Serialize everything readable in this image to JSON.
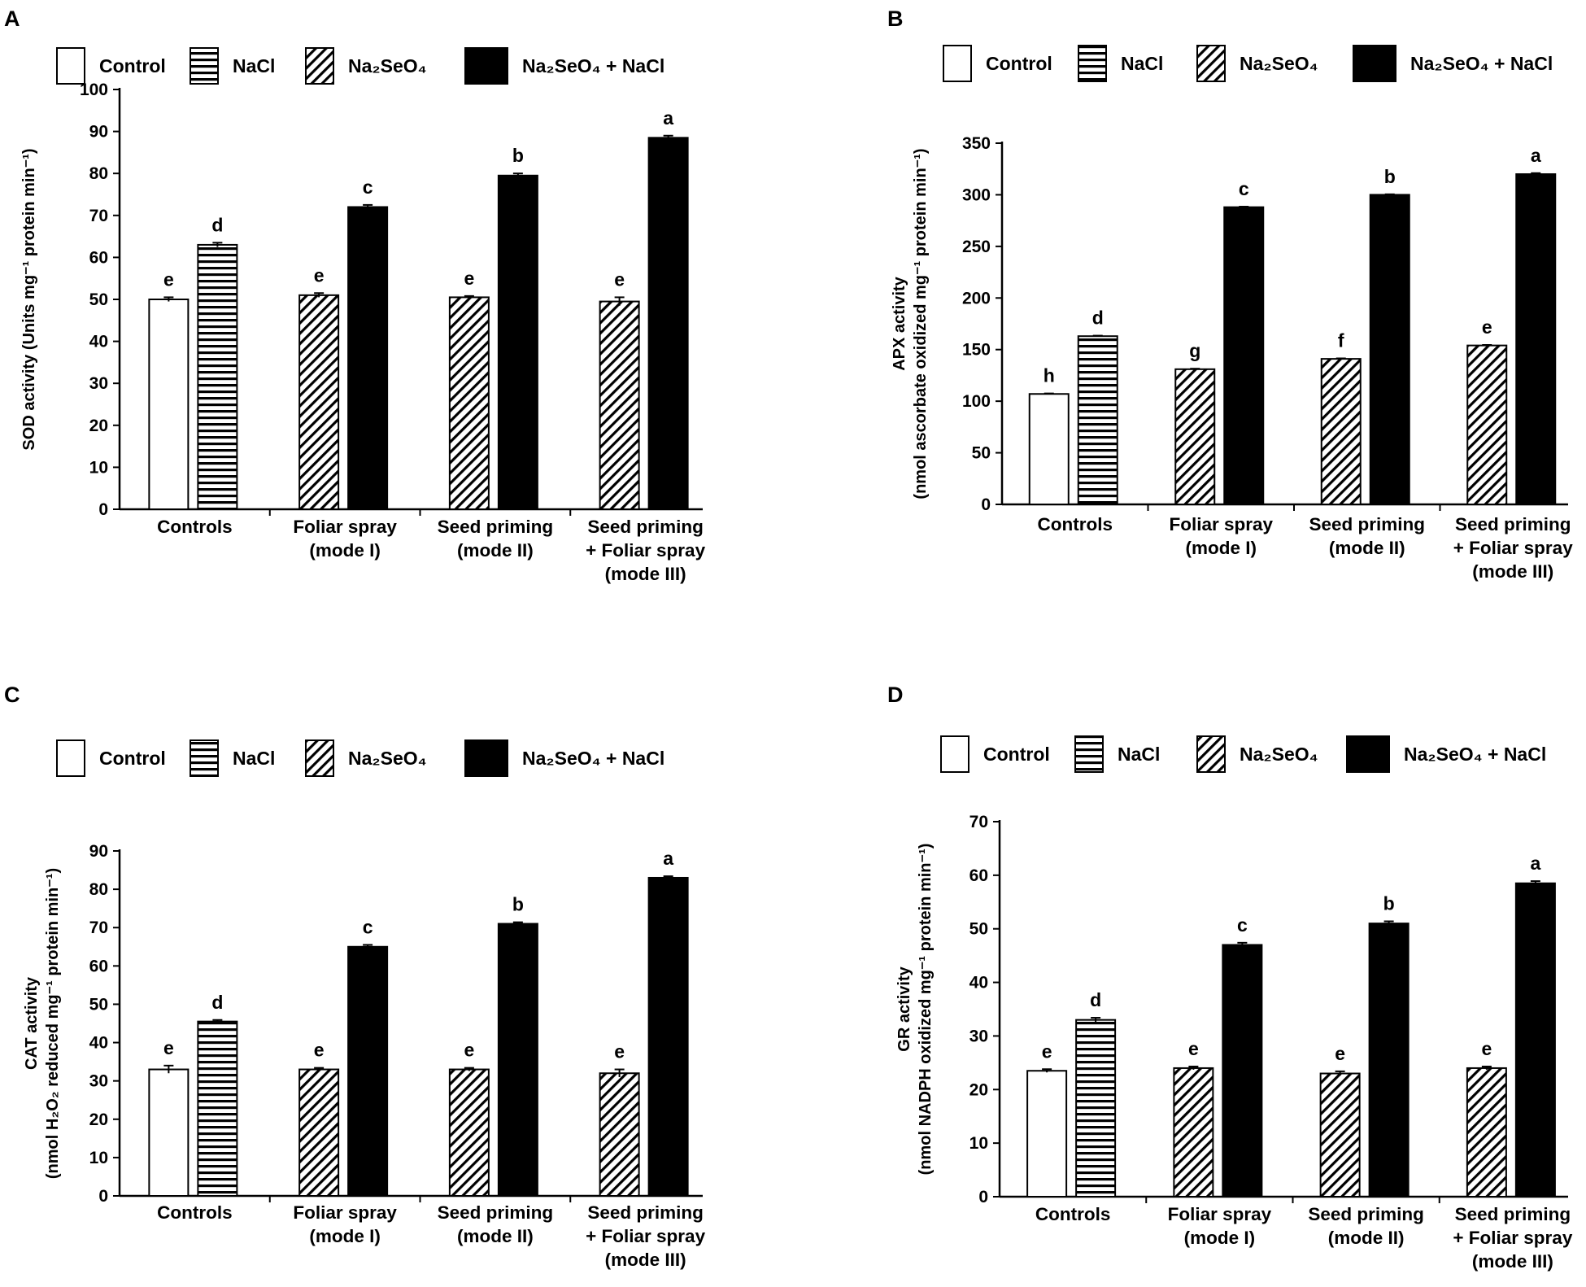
{
  "legend": [
    {
      "key": "control",
      "label": "Control",
      "fill": "#ffffff"
    },
    {
      "key": "nacl",
      "label": "NaCl",
      "fill": "horizontal-stripes"
    },
    {
      "key": "na2seo4",
      "label": "Na₂SeO₄",
      "fill": "diagonal-stripes"
    },
    {
      "key": "na2seo4_nacl",
      "label": "Na₂SeO₄ + NaCl",
      "fill": "#000000"
    }
  ],
  "colors": {
    "bar_outline": "#000000",
    "solid": "#000000",
    "open": "#ffffff"
  },
  "chart_data": [
    {
      "panel": "A",
      "type": "bar",
      "ylabel": "SOD activity (Units mg⁻¹ protein min⁻¹)",
      "ylabel_lines": [
        "SOD activity (Units mg⁻¹ protein min⁻¹)"
      ],
      "ylim": [
        0,
        100
      ],
      "yticks": [
        0,
        10,
        20,
        30,
        40,
        50,
        60,
        70,
        80,
        90,
        100
      ],
      "categories": [
        {
          "lines": [
            "Controls"
          ]
        },
        {
          "lines": [
            "Foliar spray",
            "(mode I)"
          ]
        },
        {
          "lines": [
            "Seed priming",
            "(mode II)"
          ]
        },
        {
          "lines": [
            "Seed priming",
            "+ Foliar spray",
            "(mode III)"
          ]
        }
      ],
      "bars": [
        {
          "group": 0,
          "series": "control",
          "value": 50,
          "error": 0.5,
          "letter": "e"
        },
        {
          "group": 0,
          "series": "nacl",
          "value": 63,
          "error": 0.5,
          "letter": "d"
        },
        {
          "group": 1,
          "series": "na2seo4",
          "value": 51,
          "error": 0.5,
          "letter": "e"
        },
        {
          "group": 1,
          "series": "na2seo4_nacl",
          "value": 72,
          "error": 0.5,
          "letter": "c"
        },
        {
          "group": 2,
          "series": "na2seo4",
          "value": 50.5,
          "error": 0.3,
          "letter": "e"
        },
        {
          "group": 2,
          "series": "na2seo4_nacl",
          "value": 79.5,
          "error": 0.5,
          "letter": "b"
        },
        {
          "group": 3,
          "series": "na2seo4",
          "value": 49.5,
          "error": 1.0,
          "letter": "e"
        },
        {
          "group": 3,
          "series": "na2seo4_nacl",
          "value": 88.5,
          "error": 0.5,
          "letter": "a"
        }
      ]
    },
    {
      "panel": "B",
      "type": "bar",
      "ylabel": "APX activity (nmol ascorbate oxidized mg⁻¹ protein min⁻¹)",
      "ylabel_lines": [
        "APX activity",
        "(nmol ascorbate oxidized mg⁻¹ protein min⁻¹)"
      ],
      "ylim": [
        0,
        350
      ],
      "yticks": [
        0,
        50,
        100,
        150,
        200,
        250,
        300,
        350
      ],
      "categories": [
        {
          "lines": [
            "Controls"
          ]
        },
        {
          "lines": [
            "Foliar spray",
            "(mode I)"
          ]
        },
        {
          "lines": [
            "Seed priming",
            "(mode II)"
          ]
        },
        {
          "lines": [
            "Seed priming",
            "+ Foliar spray",
            "(mode III)"
          ]
        }
      ],
      "bars": [
        {
          "group": 0,
          "series": "control",
          "value": 107,
          "error": 0.5,
          "letter": "h"
        },
        {
          "group": 0,
          "series": "nacl",
          "value": 163,
          "error": 0.5,
          "letter": "d"
        },
        {
          "group": 1,
          "series": "na2seo4",
          "value": 131,
          "error": 0.5,
          "letter": "g"
        },
        {
          "group": 1,
          "series": "na2seo4_nacl",
          "value": 288,
          "error": 0.5,
          "letter": "c"
        },
        {
          "group": 2,
          "series": "na2seo4",
          "value": 141,
          "error": 0.5,
          "letter": "f"
        },
        {
          "group": 2,
          "series": "na2seo4_nacl",
          "value": 300,
          "error": 0.5,
          "letter": "b"
        },
        {
          "group": 3,
          "series": "na2seo4",
          "value": 154,
          "error": 0.5,
          "letter": "e"
        },
        {
          "group": 3,
          "series": "na2seo4_nacl",
          "value": 320,
          "error": 1.0,
          "letter": "a"
        }
      ]
    },
    {
      "panel": "C",
      "type": "bar",
      "ylabel": "CAT activity (nmol H₂O₂ reduced mg⁻¹ protein min⁻¹)",
      "ylabel_lines": [
        "CAT activity",
        "(nmol H₂O₂ reduced mg⁻¹ protein min⁻¹)"
      ],
      "ylim": [
        0,
        90
      ],
      "yticks": [
        0,
        10,
        20,
        30,
        40,
        50,
        60,
        70,
        80,
        90
      ],
      "categories": [
        {
          "lines": [
            "Controls"
          ]
        },
        {
          "lines": [
            "Foliar spray",
            "(mode I)"
          ]
        },
        {
          "lines": [
            "Seed priming",
            "(mode II)"
          ]
        },
        {
          "lines": [
            "Seed priming",
            "+ Foliar spray",
            "(mode III)"
          ]
        }
      ],
      "bars": [
        {
          "group": 0,
          "series": "control",
          "value": 33,
          "error": 1.0,
          "letter": "e"
        },
        {
          "group": 0,
          "series": "nacl",
          "value": 45.5,
          "error": 0.4,
          "letter": "d"
        },
        {
          "group": 1,
          "series": "na2seo4",
          "value": 33,
          "error": 0.4,
          "letter": "e"
        },
        {
          "group": 1,
          "series": "na2seo4_nacl",
          "value": 65,
          "error": 0.5,
          "letter": "c"
        },
        {
          "group": 2,
          "series": "na2seo4",
          "value": 33,
          "error": 0.4,
          "letter": "e"
        },
        {
          "group": 2,
          "series": "na2seo4_nacl",
          "value": 71,
          "error": 0.4,
          "letter": "b"
        },
        {
          "group": 3,
          "series": "na2seo4",
          "value": 32,
          "error": 1.0,
          "letter": "e"
        },
        {
          "group": 3,
          "series": "na2seo4_nacl",
          "value": 83,
          "error": 0.4,
          "letter": "a"
        }
      ]
    },
    {
      "panel": "D",
      "type": "bar",
      "ylabel": "GR activity (nmol NADPH oxidized mg⁻¹ protein min⁻¹)",
      "ylabel_lines": [
        "GR activity",
        "(nmol NADPH oxidized mg⁻¹ protein min⁻¹)"
      ],
      "ylim": [
        0,
        70
      ],
      "yticks": [
        0,
        10,
        20,
        30,
        40,
        50,
        60,
        70
      ],
      "categories": [
        {
          "lines": [
            "Controls"
          ]
        },
        {
          "lines": [
            "Foliar spray",
            "(mode I)"
          ]
        },
        {
          "lines": [
            "Seed priming",
            "(mode II)"
          ]
        },
        {
          "lines": [
            "Seed priming",
            "+ Foliar spray",
            "(mode III)"
          ]
        }
      ],
      "bars": [
        {
          "group": 0,
          "series": "control",
          "value": 23.5,
          "error": 0.3,
          "letter": "e"
        },
        {
          "group": 0,
          "series": "nacl",
          "value": 33,
          "error": 0.4,
          "letter": "d"
        },
        {
          "group": 1,
          "series": "na2seo4",
          "value": 24,
          "error": 0.3,
          "letter": "e"
        },
        {
          "group": 1,
          "series": "na2seo4_nacl",
          "value": 47,
          "error": 0.4,
          "letter": "c"
        },
        {
          "group": 2,
          "series": "na2seo4",
          "value": 23,
          "error": 0.4,
          "letter": "e"
        },
        {
          "group": 2,
          "series": "na2seo4_nacl",
          "value": 51,
          "error": 0.4,
          "letter": "b"
        },
        {
          "group": 3,
          "series": "na2seo4",
          "value": 24,
          "error": 0.3,
          "letter": "e"
        },
        {
          "group": 3,
          "series": "na2seo4_nacl",
          "value": 58.5,
          "error": 0.4,
          "letter": "a"
        }
      ]
    }
  ]
}
